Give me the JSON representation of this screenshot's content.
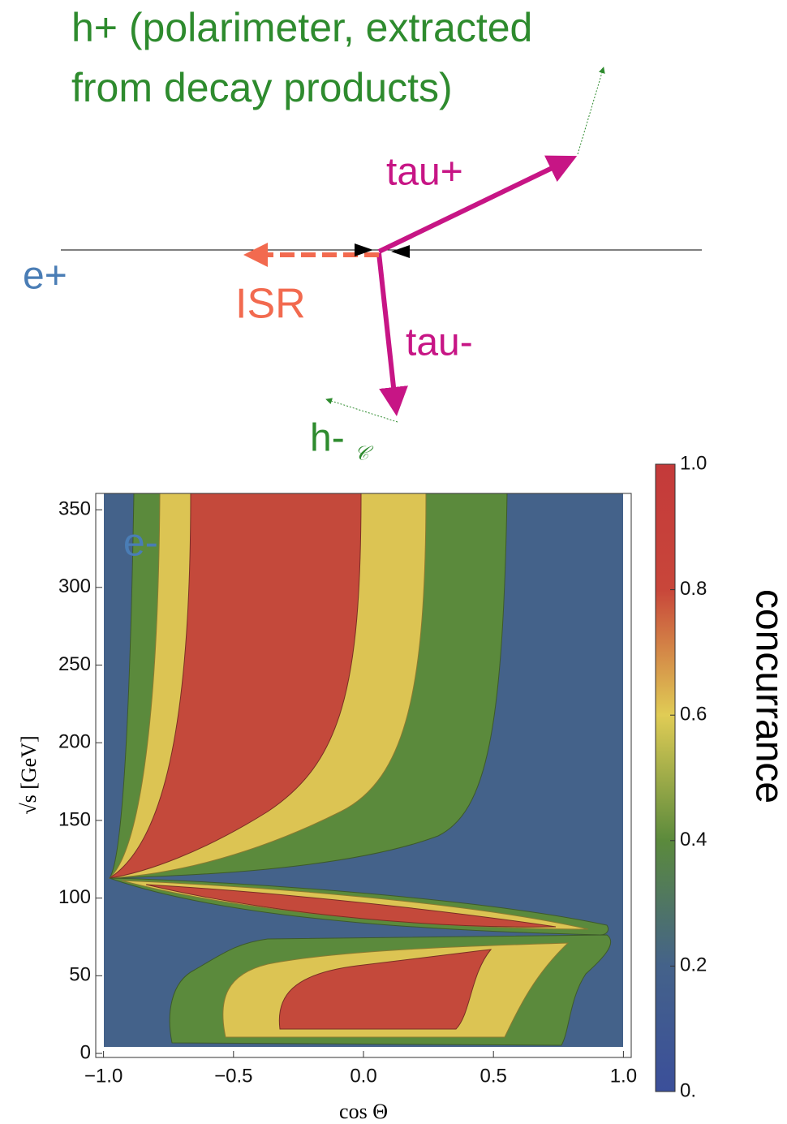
{
  "diagram": {
    "labels": {
      "h_plus_line1": "h+ (polarimeter, extracted",
      "h_plus_line2": "from decay products)",
      "tau_plus": "tau+",
      "e_plus": "e+",
      "isr": "ISR",
      "tau_minus": "tau-",
      "h_minus": "h-",
      "h_minus_sub": "𝒞",
      "e_minus": "e-"
    }
  },
  "chart_data": {
    "type": "contour",
    "xlabel": "cos Θ",
    "ylabel": "√s  [GeV]",
    "colorbar_label": "concurrance",
    "xlim": [
      -1.03,
      1.03
    ],
    "ylim": [
      -2.6,
      360.5
    ],
    "xticks": [
      {
        "value": -1,
        "label": "−1.0"
      },
      {
        "value": -0.5,
        "label": "−0.5"
      },
      {
        "value": 0,
        "label": "0.0"
      },
      0.5,
      {
        "value": 1,
        "label": "1.0"
      }
    ],
    "yticks": [
      0,
      50,
      100,
      150,
      200,
      250,
      300,
      350
    ],
    "clim": [
      0,
      1
    ],
    "cticks": [
      {
        "value": 0,
        "label": "0."
      },
      0.2,
      0.4,
      0.6,
      0.8,
      {
        "value": 1,
        "label": "1.0"
      }
    ],
    "colormap": [
      {
        "value": 0,
        "color": "#3b4f9a"
      },
      {
        "value": 0.2,
        "color": "#44628a"
      },
      {
        "value": 0.4,
        "color": "#5b8a3c"
      },
      {
        "value": 0.6,
        "color": "#e0cc55"
      },
      {
        "value": 0.8,
        "color": "#c8463a"
      },
      {
        "value": 1,
        "color": "#c43a3a"
      }
    ]
  }
}
